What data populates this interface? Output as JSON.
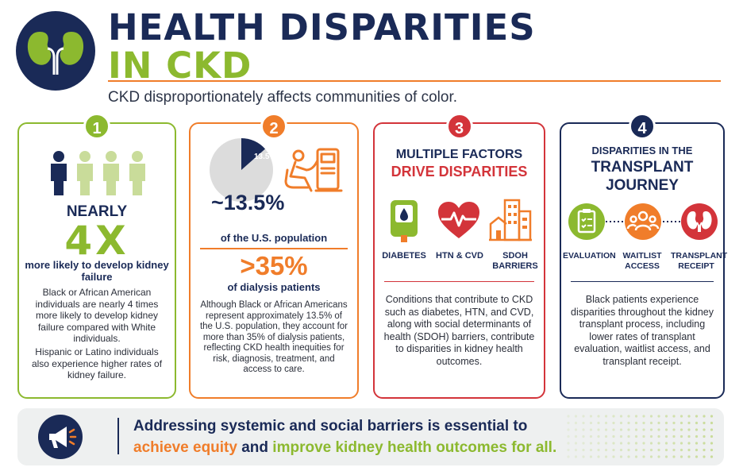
{
  "header": {
    "logo_icon": "kidneys-icon",
    "title_line1": "HEALTH DISPARITIES",
    "title_line2": "IN CKD",
    "subtitle": "CKD disproportionately affects communities of color."
  },
  "colors": {
    "navy": "#1a2a57",
    "green": "#8cb92f",
    "orange": "#f07d2a",
    "red": "#d3343a"
  },
  "cards": [
    {
      "number": "1",
      "icon": "people-icon",
      "stat_prefix": "NEARLY",
      "stat": "4X",
      "stat_caption": "more likely to develop kidney failure",
      "paragraphs": [
        "Black or African American individuals are nearly 4 times more likely to develop kidney failure compared with White individuals.",
        "Hispanic or Latino individuals also experience higher rates of kidney failure."
      ]
    },
    {
      "number": "2",
      "pie_label": "13.5%",
      "pie_fraction": 0.135,
      "icon": "dialysis-patient-icon",
      "stat1": "~13.5%",
      "stat1_caption": "of the U.S. population",
      "stat2": ">35%",
      "stat2_caption": "of dialysis patients",
      "paragraph": "Although Black or African Americans represent approximately 13.5% of the U.S. population, they account for more than 35% of dialysis patients, reflecting CKD health inequities for risk, diagnosis, treatment, and access to care."
    },
    {
      "number": "3",
      "heading_line1": "MULTIPLE FACTORS",
      "heading_line2": "DRIVE DISPARITIES",
      "factors": [
        {
          "icon": "glucometer-icon",
          "label": "DIABETES"
        },
        {
          "icon": "heart-pulse-icon",
          "label": "HTN & CVD"
        },
        {
          "icon": "buildings-icon",
          "label": "SDOH BARRIERS"
        }
      ],
      "paragraph": "Conditions that contribute to CKD such as diabetes, HTN, and CVD, along with social determinants of health (SDOH) barriers, contribute to disparities in kidney health outcomes."
    },
    {
      "number": "4",
      "heading_line1": "DISPARITIES IN THE",
      "heading_line2": "TRANSPLANT",
      "heading_line3": "JOURNEY",
      "steps": [
        {
          "icon": "clipboard-icon",
          "label": "EVALUATION"
        },
        {
          "icon": "group-icon",
          "label": "WAITLIST ACCESS"
        },
        {
          "icon": "kidneys-icon",
          "label": "TRANSPLANT RECEIPT"
        }
      ],
      "paragraph": "Black patients experience disparities throughout the kidney transplant process, including lower rates of transplant evaluation, waitlist access, and transplant receipt."
    }
  ],
  "banner": {
    "icon": "megaphone-icon",
    "line1": "Addressing systemic and social barriers is essential to",
    "line2_part1": "achieve equity",
    "line2_part2": " and ",
    "line2_part3": "improve kidney health outcomes for all."
  }
}
